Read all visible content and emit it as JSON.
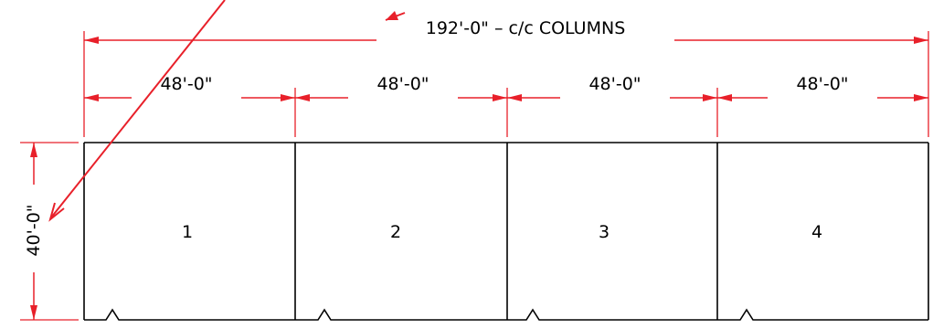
{
  "dimensions": {
    "overall": "192'-0\" – c/c COLUMNS",
    "bays": [
      "48'-0\"",
      "48'-0\"",
      "48'-0\"",
      "48'-0\""
    ],
    "depth": "40'-0\""
  },
  "bays": [
    "1",
    "2",
    "3",
    "4"
  ],
  "colors": {
    "dimension_lines": "#e8202a",
    "outline": "#000000",
    "annotation_arrows": "#e8202a"
  }
}
